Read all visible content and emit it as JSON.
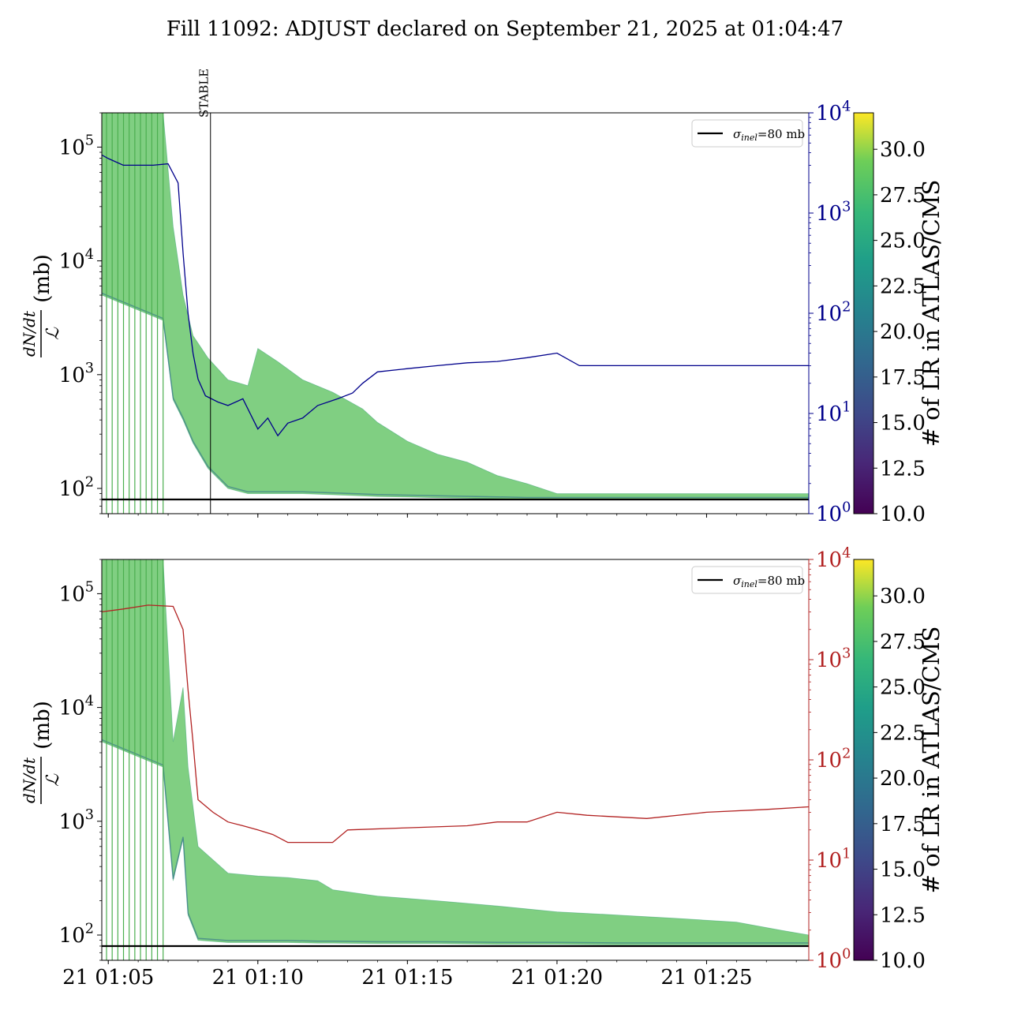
{
  "title": "Fill 11092: ADJUST declared on September 21, 2025 at 01:04:47",
  "x_ticks": [
    "21 01:05",
    "21 01:10",
    "21 01:15",
    "21 01:20",
    "21 01:25"
  ],
  "left_y_ticks": [
    "10^2",
    "10^3",
    "10^4",
    "10^5"
  ],
  "right_y_ticks": [
    "10^0",
    "10^1",
    "10^2",
    "10^3",
    "10^4"
  ],
  "ylabel": "dN/dt / L (mb)",
  "ylabel_parts": {
    "num": "dN/dt",
    "den": "ℒ",
    "unit": "(mb)"
  },
  "legend_label": "σinel=80 mb",
  "legend_parts": {
    "sym": "σ",
    "sub": "inel",
    "rest": "=80 mb"
  },
  "stable_label": "STABLE",
  "colorbar": {
    "label": "# of LR in ATLAS/CMS",
    "ticks": [
      "10.0",
      "12.5",
      "15.0",
      "17.5",
      "20.0",
      "22.5",
      "25.0",
      "27.5",
      "30.0"
    ],
    "range": [
      10.0,
      32.0
    ],
    "colormap": "viridis"
  },
  "colors": {
    "top_right_axis": "#00008b",
    "bottom_right_axis": "#b22222",
    "sigma_line": "#000000"
  },
  "chart_data": [
    {
      "type": "line",
      "panel": "top",
      "x_unit": "minutes after 01:04:47",
      "xlim": [
        "01:04:47",
        "01:28:25"
      ],
      "yscale": "log",
      "ylim": [
        60,
        200000
      ],
      "y2scale": "log",
      "y2lim": [
        1,
        10000
      ],
      "y2color": "#00008b",
      "stable_marker_time": "01:08:25",
      "sigma_inel_mb": 80,
      "legend_position": "top-right",
      "right_axis_series": {
        "time": [
          "01:04:47",
          "01:05:00",
          "01:05:30",
          "01:06:30",
          "01:07:00",
          "01:07:20",
          "01:07:30",
          "01:07:40",
          "01:07:50",
          "01:08:00",
          "01:08:15",
          "01:08:40",
          "01:09:00",
          "01:09:30",
          "01:10:00",
          "01:10:20",
          "01:10:40",
          "01:11:00",
          "01:11:30",
          "01:12:00",
          "01:12:40",
          "01:13:10",
          "01:13:30",
          "01:14:00",
          "01:15:00",
          "01:16:00",
          "01:17:00",
          "01:18:00",
          "01:19:00",
          "01:20:00",
          "01:20:45",
          "01:21:00",
          "01:23:00",
          "01:25:00",
          "01:27:00",
          "01:28:25"
        ],
        "value": [
          3800,
          3500,
          3000,
          3000,
          3100,
          2000,
          400,
          100,
          40,
          22,
          15,
          13,
          12,
          14,
          7,
          9,
          6,
          8,
          9,
          12,
          14,
          16,
          20,
          26,
          28,
          30,
          32,
          33,
          36,
          40,
          30,
          30,
          30,
          30,
          30,
          30
        ]
      },
      "band_envelope": {
        "time": [
          "01:04:47",
          "01:06:50",
          "01:07:10",
          "01:07:30",
          "01:07:50",
          "01:08:20",
          "01:09:00",
          "01:09:40",
          "01:10:00",
          "01:10:40",
          "01:11:30",
          "01:12:30",
          "01:13:30",
          "01:14:00",
          "01:15:00",
          "01:16:00",
          "01:17:00",
          "01:18:00",
          "01:19:00",
          "01:20:00",
          "01:22:00",
          "01:25:00",
          "01:28:25"
        ],
        "upper": [
          200000,
          200000,
          20000,
          5000,
          2200,
          1400,
          900,
          800,
          1700,
          1300,
          900,
          700,
          500,
          380,
          260,
          200,
          170,
          130,
          110,
          90,
          90,
          90,
          90
        ],
        "lower": [
          5000,
          3000,
          600,
          400,
          250,
          150,
          100,
          90,
          90,
          90,
          90,
          88,
          86,
          85,
          84,
          83,
          82,
          81,
          80,
          80,
          80,
          80,
          80
        ]
      }
    },
    {
      "type": "line",
      "panel": "bottom",
      "x_unit": "minutes after 01:04:47",
      "xlim": [
        "01:04:47",
        "01:28:25"
      ],
      "yscale": "log",
      "ylim": [
        60,
        200000
      ],
      "y2scale": "log",
      "y2lim": [
        1,
        10000
      ],
      "y2color": "#b22222",
      "sigma_inel_mb": 80,
      "legend_position": "top-right",
      "right_axis_series": {
        "time": [
          "01:04:47",
          "01:05:30",
          "01:06:20",
          "01:07:10",
          "01:07:30",
          "01:07:40",
          "01:07:50",
          "01:08:00",
          "01:08:30",
          "01:09:00",
          "01:09:30",
          "01:10:00",
          "01:10:30",
          "01:11:00",
          "01:12:00",
          "01:12:30",
          "01:13:00",
          "01:15:00",
          "01:17:00",
          "01:18:00",
          "01:19:00",
          "01:20:00",
          "01:21:00",
          "01:23:00",
          "01:25:00",
          "01:27:00",
          "01:28:25"
        ],
        "value": [
          3000,
          3200,
          3500,
          3400,
          2000,
          500,
          150,
          40,
          30,
          24,
          22,
          20,
          18,
          15,
          15,
          15,
          20,
          21,
          22,
          24,
          24,
          30,
          28,
          26,
          30,
          32,
          34
        ]
      },
      "band_envelope": {
        "time": [
          "01:04:47",
          "01:06:50",
          "01:07:10",
          "01:07:30",
          "01:07:40",
          "01:08:00",
          "01:09:00",
          "01:10:00",
          "01:11:00",
          "01:12:00",
          "01:12:30",
          "01:14:00",
          "01:16:00",
          "01:18:00",
          "01:20:00",
          "01:22:00",
          "01:24:00",
          "01:26:00",
          "01:27:30",
          "01:28:25"
        ],
        "upper": [
          200000,
          200000,
          5000,
          15000,
          3000,
          600,
          350,
          330,
          320,
          300,
          250,
          220,
          200,
          180,
          160,
          150,
          140,
          130,
          110,
          100
        ],
        "lower": [
          5000,
          3000,
          300,
          700,
          150,
          90,
          86,
          86,
          86,
          85,
          85,
          84,
          84,
          83,
          83,
          82,
          82,
          82,
          82,
          82
        ]
      }
    }
  ]
}
